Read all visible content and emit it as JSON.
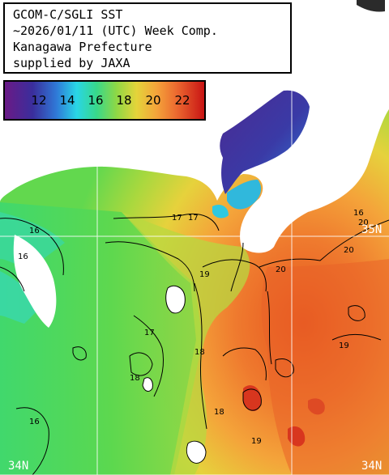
{
  "title": {
    "lines": [
      "GCOM-C/SGLI SST",
      "~2026/01/11 (UTC) Week Comp.",
      "Kanagawa Prefecture",
      "supplied by JAXA"
    ]
  },
  "legend": {
    "ticks": [
      "12",
      "14",
      "16",
      "18",
      "20",
      "22"
    ],
    "colors": {
      "t11": "#6a1a86",
      "t12": "#3a2e9c",
      "t13": "#2f7ad8",
      "t14": "#29d6e6",
      "t15": "#38d88a",
      "t16": "#5ad84f",
      "t17": "#a6d83e",
      "t18": "#e4d43a",
      "t19": "#f4a43a",
      "t20": "#f07432",
      "t21": "#e43c2a",
      "t22": "#c81414"
    }
  },
  "grid": {
    "lat_labels": [
      {
        "text": "35N",
        "side": "right"
      },
      {
        "text": "34N",
        "side": "left"
      },
      {
        "text": "34N",
        "side": "right"
      }
    ]
  },
  "contour_labels": [
    "16",
    "16",
    "16",
    "17",
    "17",
    "17",
    "18",
    "18",
    "18",
    "19",
    "19",
    "19",
    "20",
    "20",
    "20",
    "16"
  ]
}
